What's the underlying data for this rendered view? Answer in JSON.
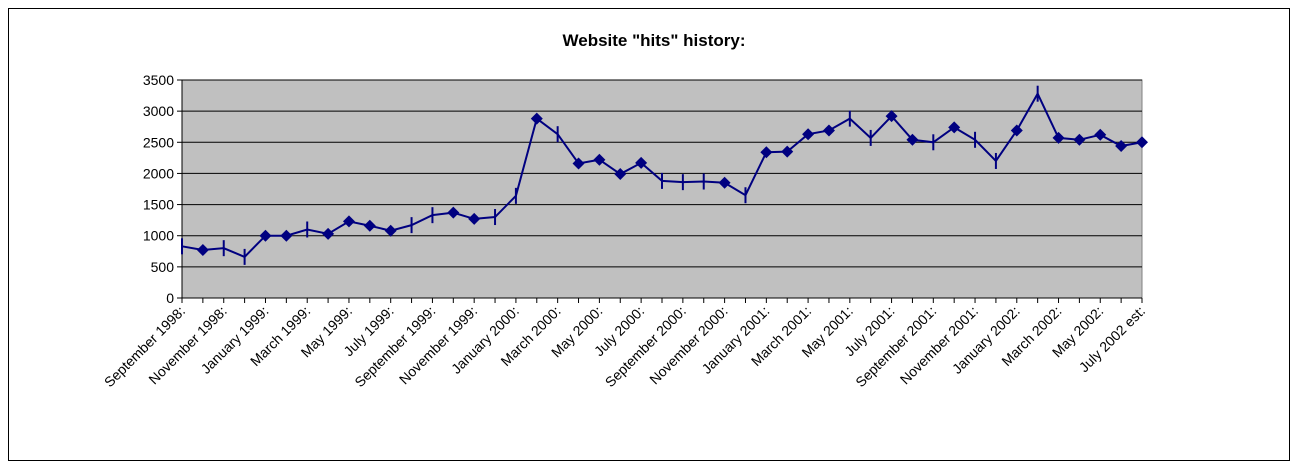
{
  "chart_data": {
    "type": "line",
    "title": "Website \"hits\" history:",
    "categories": [
      "September 1998:",
      null,
      "November 1998:",
      null,
      "January 1999:",
      null,
      "March 1999:",
      null,
      "May 1999:",
      null,
      "July 1999:",
      null,
      "September 1999:",
      null,
      "November 1999:",
      null,
      "January 2000:",
      null,
      "March 2000:",
      null,
      "May 2000:",
      null,
      "July 2000:",
      null,
      "September 2000:",
      null,
      "November 2000:",
      null,
      "January 2001:",
      null,
      "March 2001:",
      null,
      "May 2001:",
      null,
      "July 2001:",
      null,
      "September 2001:",
      null,
      "November 2001:",
      null,
      "January 2002:",
      null,
      "March 2002:",
      null,
      "May 2002:",
      null,
      "July 2002 est:"
    ],
    "series": [
      {
        "color": "#000080",
        "values": [
          830,
          770,
          800,
          660,
          1000,
          1000,
          1100,
          1030,
          1230,
          1160,
          1080,
          1170,
          1330,
          1370,
          1270,
          1300,
          1640,
          2880,
          2630,
          2160,
          2220,
          1990,
          2170,
          1880,
          1860,
          1870,
          1850,
          1650,
          2340,
          2350,
          2630,
          2690,
          2880,
          2570,
          2920,
          2540,
          2500,
          2740,
          2540,
          2200,
          2690,
          3280,
          2570,
          2540,
          2620,
          2440,
          2500
        ],
        "markers": [
          "bar",
          "diamond",
          "bar",
          "bar",
          "diamond",
          "diamond",
          "bar",
          "diamond",
          "diamond",
          "diamond",
          "diamond",
          "bar",
          "bar",
          "diamond",
          "diamond",
          "bar",
          "bar",
          "diamond",
          "bar",
          "diamond",
          "diamond",
          "diamond",
          "diamond",
          "bar",
          "bar",
          "bar",
          "diamond",
          "bar",
          "diamond",
          "diamond",
          "diamond",
          "diamond",
          "bar",
          "bar",
          "diamond",
          "diamond",
          "bar",
          "diamond",
          "bar",
          "bar",
          "diamond",
          "bar",
          "diamond",
          "diamond",
          "diamond",
          "diamond",
          "diamond"
        ]
      }
    ],
    "ylim": [
      0,
      3500
    ],
    "yticks": [
      0,
      500,
      1000,
      1500,
      2000,
      2500,
      3000,
      3500
    ],
    "grid": true
  }
}
